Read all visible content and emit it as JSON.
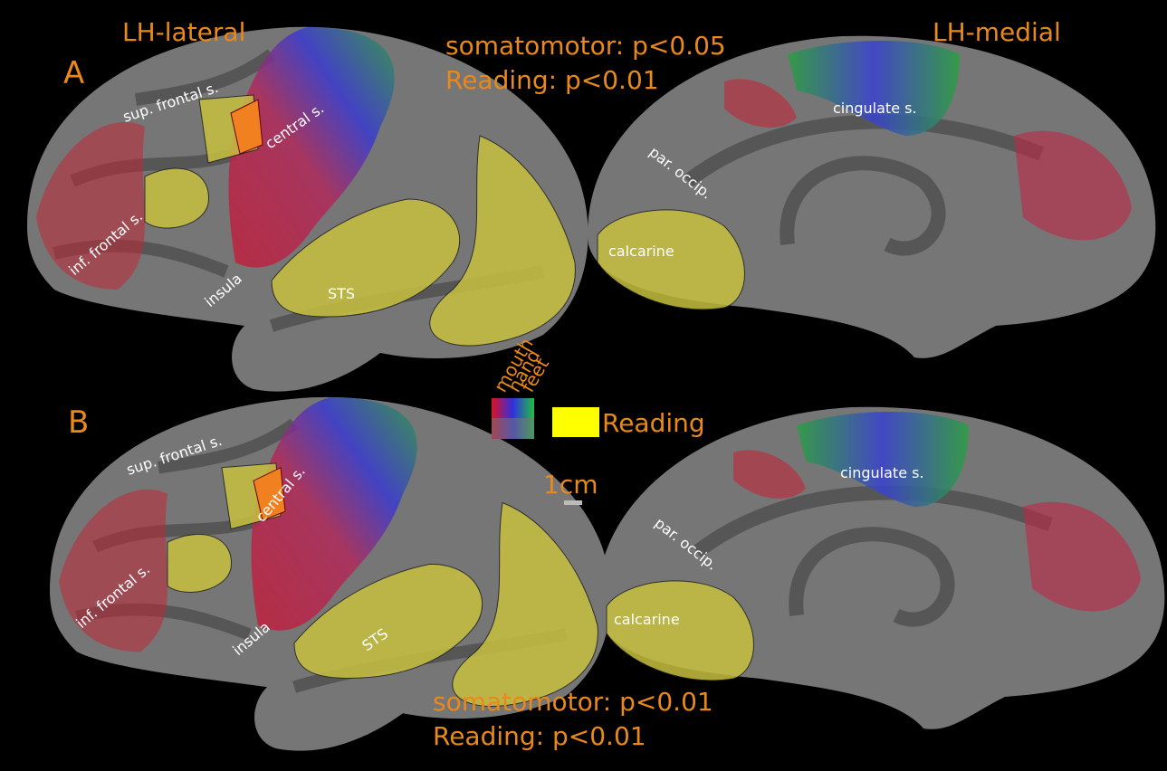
{
  "header": {
    "left_view": "LH-lateral",
    "right_view": "LH-medial"
  },
  "panels": [
    {
      "label": "A",
      "thresholds": [
        "somatomotor: p<0.05",
        "Reading: p<0.01"
      ],
      "lateral_labels": [
        "sup. frontal s.",
        "central s.",
        "inf. frontal s.",
        "insula",
        "STS"
      ],
      "medial_labels": [
        "cingulate s.",
        "par. occip.",
        "calcarine"
      ]
    },
    {
      "label": "B",
      "thresholds": [
        "somatomotor: p<0.01",
        "Reading: p<0.01"
      ],
      "lateral_labels": [
        "sup. frontal s.",
        "central s.",
        "inf. frontal s.",
        "insula",
        "STS"
      ],
      "medial_labels": [
        "cingulate s.",
        "par. occip.",
        "calcarine"
      ]
    }
  ],
  "legend": {
    "somatomotor": [
      "mouth",
      "hand",
      "feet"
    ],
    "reading": "Reading",
    "scale": "1cm"
  }
}
